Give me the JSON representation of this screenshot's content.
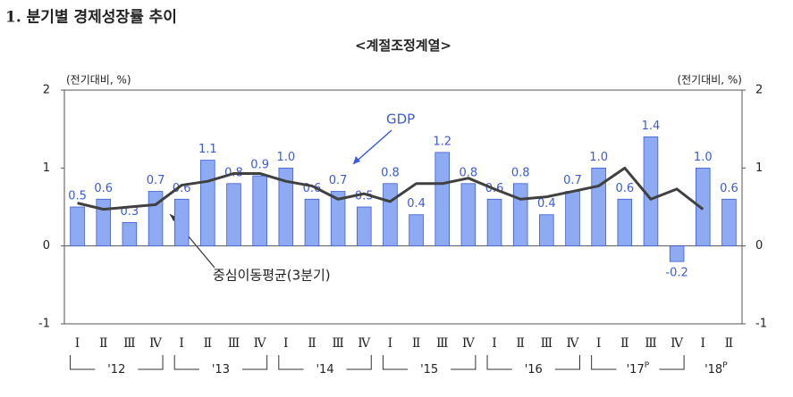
{
  "chart_data": {
    "type": "bar",
    "title": "1. 분기별 경제성장률 추이",
    "subtitle": "<계절조정계열>",
    "y_label": "(전기대비, %)",
    "y2_label": "(전기대비, %)",
    "annotations": [
      "GDP",
      "중심이동평균(3분기)"
    ],
    "categories": [
      "Ⅰ",
      "Ⅱ",
      "Ⅲ",
      "Ⅳ",
      "Ⅰ",
      "Ⅱ",
      "Ⅲ",
      "Ⅳ",
      "Ⅰ",
      "Ⅱ",
      "Ⅲ",
      "Ⅳ",
      "Ⅰ",
      "Ⅱ",
      "Ⅲ",
      "Ⅳ",
      "Ⅰ",
      "Ⅱ",
      "Ⅲ",
      "Ⅳ",
      "Ⅰ",
      "Ⅱ",
      "Ⅲ",
      "Ⅳ",
      "Ⅰ",
      "Ⅱ"
    ],
    "groups": [
      {
        "label": "'12",
        "size": 4
      },
      {
        "label": "'13",
        "size": 4
      },
      {
        "label": "'14",
        "size": 4
      },
      {
        "label": "'15",
        "size": 4
      },
      {
        "label": "'16",
        "size": 4
      },
      {
        "label": "'17",
        "sup": "P",
        "size": 4
      },
      {
        "label": "'18",
        "sup": "P",
        "size": 2
      }
    ],
    "series": [
      {
        "name": "GDP",
        "type": "bar",
        "color": "#8eaaf2",
        "values": [
          0.5,
          0.6,
          0.3,
          0.7,
          0.6,
          1.1,
          0.8,
          0.9,
          1.0,
          0.6,
          0.7,
          0.5,
          0.8,
          0.4,
          1.2,
          0.8,
          0.6,
          0.8,
          0.4,
          0.7,
          1.0,
          0.6,
          1.4,
          -0.2,
          1.0,
          0.6
        ],
        "value_labels": [
          "0.5",
          "0.6",
          "0.3",
          "0.7",
          "0.6",
          "1.1",
          "0.8",
          "0.9",
          "1.0",
          "0.6",
          "0.7",
          "0.5",
          "0.8",
          "0.4",
          "1.2",
          "0.8",
          "0.6",
          "0.8",
          "0.4",
          "0.7",
          "1.0",
          "0.6",
          "1.4",
          "-0.2",
          "1.0",
          "0.6"
        ]
      },
      {
        "name": "중심이동평균(3분기)",
        "type": "line",
        "color": "#404040",
        "values": [
          0.55,
          0.47,
          0.5,
          0.53,
          0.78,
          0.83,
          0.93,
          0.93,
          0.83,
          0.77,
          0.6,
          0.67,
          0.57,
          0.8,
          0.8,
          0.87,
          0.73,
          0.6,
          0.63,
          0.7,
          0.77,
          1.0,
          0.6,
          0.73,
          0.47,
          null
        ]
      }
    ],
    "ylim": [
      -1,
      2
    ],
    "yticks": [
      -1,
      0,
      1,
      2
    ],
    "y2lim": [
      -1,
      2
    ],
    "y2ticks": [
      -1,
      0,
      1,
      2
    ]
  }
}
